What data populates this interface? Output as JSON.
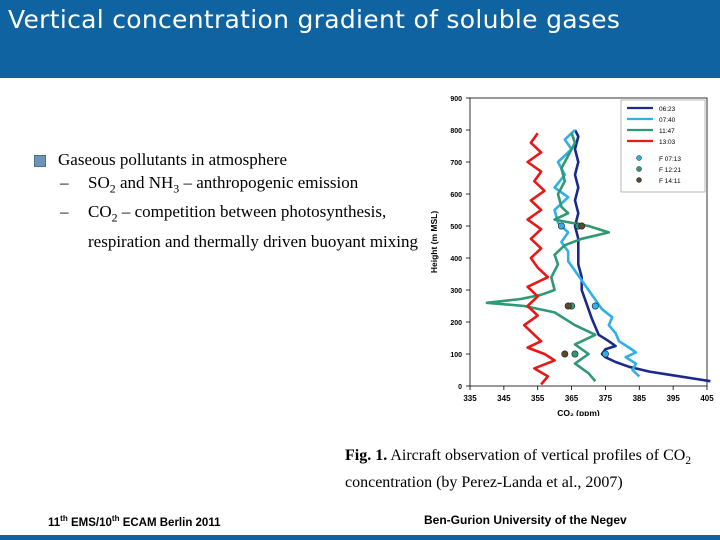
{
  "slide": {
    "title": "Vertical concentration gradient of soluble gases",
    "bullet_main": "Gaseous pollutants in atmosphere",
    "sub1_a": "SO",
    "sub1_b": "2",
    "sub1_c": " and NH",
    "sub1_d": "3",
    "sub1_e": " – anthropogenic emission",
    "sub2_a": "CO",
    "sub2_b": "2",
    "sub2_c": " – competition between photosynthesis, respiration and thermally driven buoyant mixing",
    "dash": "–",
    "caption_fig": "Fig. 1.",
    "caption_text_a": " Aircraft observation of vertical profiles of CO",
    "caption_text_b": "2",
    "caption_text_c": " concentration (by Perez-Landa et al., 2007)",
    "footer_left_a": "11",
    "footer_left_b": "th",
    "footer_left_c": " EMS/10",
    "footer_left_d": "th",
    "footer_left_e": " ECAM  Berlin 2011",
    "footer_right": "Ben-Gurion University of the Negev"
  },
  "colors": {
    "title_bar": "#0f63a0",
    "bullet_square": "#6f94b6"
  },
  "chart_data": {
    "type": "line",
    "xlabel": "CO₂ (ppm)",
    "ylabel": "Height (m MSL)",
    "xlim": [
      335,
      405
    ],
    "ylim": [
      0,
      900
    ],
    "x_ticks": [
      335,
      345,
      355,
      365,
      375,
      385,
      395,
      405
    ],
    "y_ticks": [
      0,
      100,
      200,
      300,
      400,
      500,
      600,
      700,
      800,
      900
    ],
    "grid": false,
    "legend_position": "top-right",
    "series": [
      {
        "name": "06:23",
        "color": "#1a2a8c",
        "points": [
          [
            406,
            15
          ],
          [
            400,
            25
          ],
          [
            394,
            35
          ],
          [
            388,
            45
          ],
          [
            382,
            60
          ],
          [
            378,
            75
          ],
          [
            375,
            90
          ],
          [
            374,
            100
          ],
          [
            375,
            115
          ],
          [
            378,
            125
          ],
          [
            376,
            140
          ],
          [
            373,
            160
          ],
          [
            372,
            185
          ],
          [
            371,
            210
          ],
          [
            370,
            240
          ],
          [
            369,
            270
          ],
          [
            368,
            300
          ],
          [
            368,
            340
          ],
          [
            367,
            380
          ],
          [
            367,
            420
          ],
          [
            367,
            460
          ],
          [
            366,
            500
          ],
          [
            367,
            540
          ],
          [
            366,
            580
          ],
          [
            367,
            620
          ],
          [
            366,
            660
          ],
          [
            367,
            700
          ],
          [
            366,
            740
          ],
          [
            367,
            780
          ],
          [
            366,
            800
          ]
        ]
      },
      {
        "name": "07:40",
        "color": "#2fb0e6",
        "points": [
          [
            385,
            30
          ],
          [
            383,
            50
          ],
          [
            384,
            70
          ],
          [
            381,
            90
          ],
          [
            384,
            105
          ],
          [
            382,
            120
          ],
          [
            379,
            140
          ],
          [
            378,
            165
          ],
          [
            376,
            190
          ],
          [
            377,
            215
          ],
          [
            374,
            240
          ],
          [
            372,
            270
          ],
          [
            370,
            300
          ],
          [
            368,
            330
          ],
          [
            366,
            360
          ],
          [
            364,
            390
          ],
          [
            364,
            420
          ],
          [
            362,
            450
          ],
          [
            364,
            480
          ],
          [
            361,
            510
          ],
          [
            360,
            550
          ],
          [
            364,
            590
          ],
          [
            360,
            620
          ],
          [
            363,
            660
          ],
          [
            361,
            700
          ],
          [
            365,
            740
          ],
          [
            363,
            770
          ],
          [
            366,
            800
          ]
        ]
      },
      {
        "name": "11:47",
        "color": "#2e9a72",
        "points": [
          [
            372,
            15
          ],
          [
            370,
            40
          ],
          [
            366,
            70
          ],
          [
            370,
            100
          ],
          [
            366,
            130
          ],
          [
            372,
            160
          ],
          [
            366,
            190
          ],
          [
            360,
            230
          ],
          [
            351,
            250
          ],
          [
            340,
            260
          ],
          [
            350,
            272
          ],
          [
            356,
            285
          ],
          [
            360,
            300
          ],
          [
            359,
            340
          ],
          [
            361,
            380
          ],
          [
            360,
            410
          ],
          [
            363,
            440
          ],
          [
            368,
            460
          ],
          [
            376,
            480
          ],
          [
            370,
            500
          ],
          [
            360,
            520
          ],
          [
            364,
            540
          ],
          [
            362,
            560
          ],
          [
            361,
            600
          ],
          [
            363,
            640
          ],
          [
            362,
            680
          ],
          [
            364,
            720
          ],
          [
            366,
            760
          ],
          [
            365,
            790
          ]
        ]
      },
      {
        "name": "13:03",
        "color": "#e81818",
        "points": [
          [
            356,
            5
          ],
          [
            358,
            30
          ],
          [
            354,
            55
          ],
          [
            360,
            80
          ],
          [
            357,
            100
          ],
          [
            352,
            120
          ],
          [
            356,
            140
          ],
          [
            354,
            160
          ],
          [
            351,
            190
          ],
          [
            355,
            220
          ],
          [
            352,
            250
          ],
          [
            355,
            280
          ],
          [
            352,
            310
          ],
          [
            358,
            340
          ],
          [
            355,
            370
          ],
          [
            353,
            400
          ],
          [
            356,
            430
          ],
          [
            353,
            460
          ],
          [
            356,
            490
          ],
          [
            352,
            520
          ],
          [
            356,
            550
          ],
          [
            353,
            580
          ],
          [
            357,
            610
          ],
          [
            354,
            640
          ],
          [
            356,
            670
          ],
          [
            352,
            700
          ],
          [
            356,
            730
          ],
          [
            353,
            760
          ],
          [
            355,
            790
          ]
        ]
      }
    ],
    "markers": [
      {
        "name": "F 07:13",
        "color": "#2fb0e6",
        "points": [
          [
            375,
            100
          ],
          [
            372,
            250
          ],
          [
            362,
            500
          ]
        ]
      },
      {
        "name": "F 12:21",
        "color": "#2e9a72",
        "points": [
          [
            366,
            100
          ],
          [
            365,
            250
          ],
          [
            367,
            500
          ]
        ]
      },
      {
        "name": "F 14:11",
        "color": "#5a4a2a",
        "points": [
          [
            363,
            100
          ],
          [
            364,
            250
          ],
          [
            368,
            500
          ]
        ]
      }
    ]
  }
}
